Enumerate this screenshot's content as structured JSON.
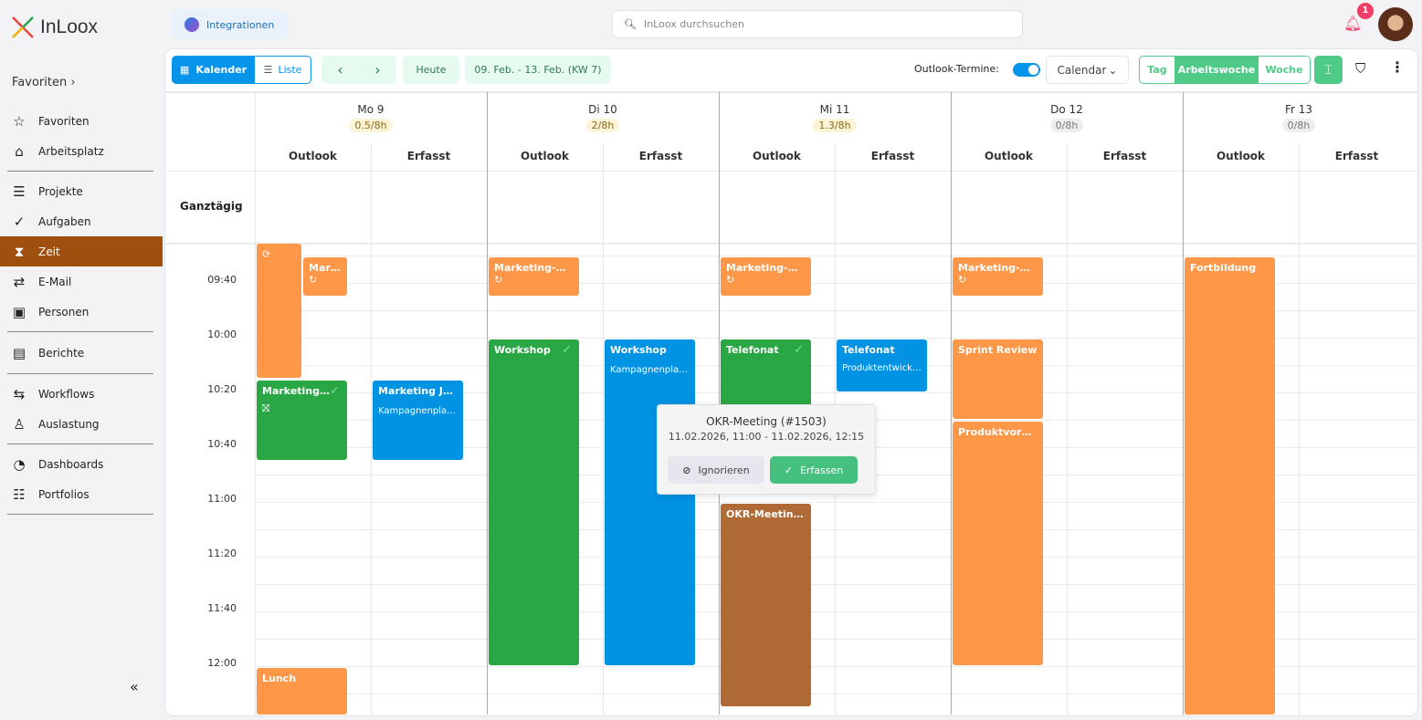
{
  "app": {
    "logo": "InLoox",
    "integrations": "Integrationen",
    "search_placeholder": "InLoox durchsuchen",
    "notifications": "1"
  },
  "sidebar": {
    "favorites_header": "Favoriten",
    "items": [
      {
        "label": "Favoriten",
        "icon": "star-icon"
      },
      {
        "label": "Arbeitsplatz",
        "icon": "home-icon"
      },
      {
        "label": "Projekte",
        "icon": "projects-icon"
      },
      {
        "label": "Aufgaben",
        "icon": "check-circle-icon"
      },
      {
        "label": "Zeit",
        "icon": "hourglass-icon"
      },
      {
        "label": "E-Mail",
        "icon": "mail-icon"
      },
      {
        "label": "Personen",
        "icon": "contacts-icon"
      },
      {
        "label": "Berichte",
        "icon": "report-icon"
      },
      {
        "label": "Workflows",
        "icon": "workflow-icon"
      },
      {
        "label": "Auslastung",
        "icon": "workload-icon"
      },
      {
        "label": "Dashboards",
        "icon": "dashboard-icon"
      },
      {
        "label": "Portfolios",
        "icon": "portfolio-icon"
      }
    ],
    "active": "Zeit",
    "collapse": "«"
  },
  "toolbar": {
    "kalender": "Kalender",
    "liste": "Liste",
    "heute": "Heute",
    "range": "09. Feb. - 13. Feb. (KW 7)",
    "outlook_label": "Outlook-Termine:",
    "outlook_on": true,
    "calendar_select": "Calendar",
    "views": [
      "Tag",
      "Arbeitswoche",
      "Woche"
    ],
    "active_view": "Arbeitswoche"
  },
  "calendar": {
    "allday": "Ganztägig",
    "subcols": [
      "Outlook",
      "Erfasst"
    ],
    "days": [
      {
        "label": "Mo 9",
        "hours": "0.5/8h"
      },
      {
        "label": "Di 10",
        "hours": "2/8h"
      },
      {
        "label": "Mi 11",
        "hours": "1.3/8h"
      },
      {
        "label": "Do 12",
        "hours": "0/8h"
      },
      {
        "label": "Fr 13",
        "hours": "0/8h"
      }
    ],
    "times": [
      "09:40",
      "10:00",
      "10:20",
      "10:40",
      "11:00",
      "11:20",
      "11:40",
      "12:00"
    ],
    "events": [
      {
        "title": ""
      },
      {
        "title": "Mark…"
      },
      {
        "title": "Marketing J…"
      },
      {
        "title": "Marketing Jo…",
        "sub": "Kampagnenpla…"
      },
      {
        "title": "Lunch"
      },
      {
        "title": "Marketing-Da…"
      },
      {
        "title": "Workshop"
      },
      {
        "title": "Workshop",
        "sub": "Kampagnenpla…"
      },
      {
        "title": "Marketing-Da…"
      },
      {
        "title": "Telefonat"
      },
      {
        "title": "Telefonat",
        "sub": "Produktentwickl…"
      },
      {
        "title": "OKR-Meeting …"
      },
      {
        "title": "Marketing-Da…"
      },
      {
        "title": "Sprint Review"
      },
      {
        "title": "Produktvorste…"
      },
      {
        "title": "Fortbildung"
      }
    ]
  },
  "popup": {
    "title": "OKR-Meeting (#1503)",
    "time": "11.02.2026, 11:00 - 11.02.2026, 12:15",
    "ignore": "Ignorieren",
    "capture": "Erfassen"
  },
  "colors": {
    "orange": "#ff9748",
    "green": "#29a744",
    "blue": "#0093e3",
    "brown": "#b06a35",
    "active_nav": "#a0500e",
    "accent_green": "#4fcb87"
  }
}
